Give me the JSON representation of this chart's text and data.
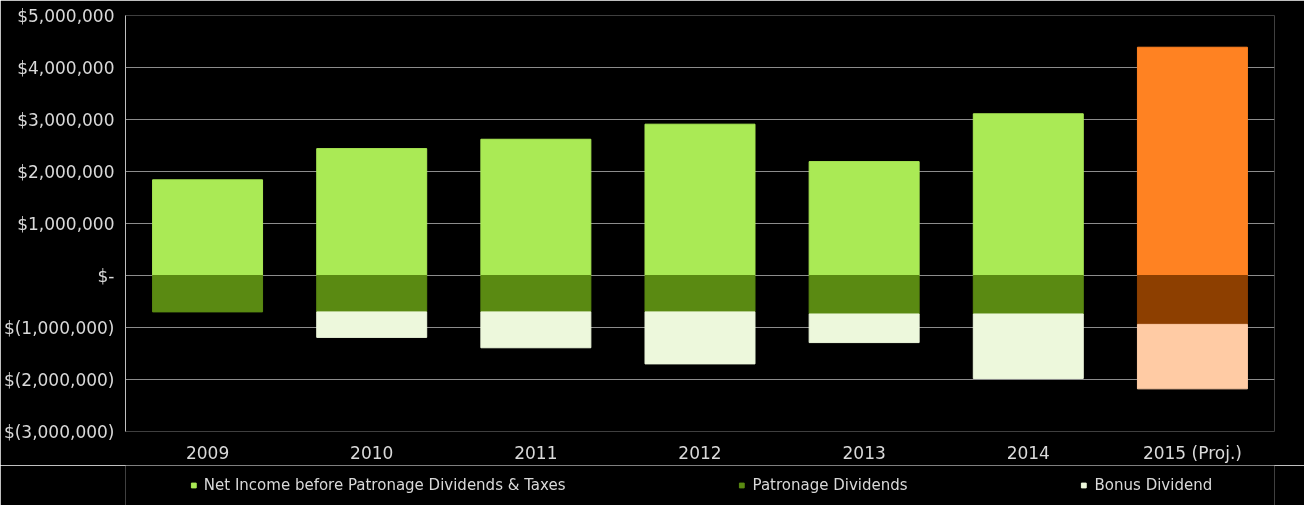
{
  "chart_data": {
    "type": "bar",
    "stacked": true,
    "categories": [
      "2009",
      "2010",
      "2011",
      "2012",
      "2013",
      "2014",
      "2015 (Proj.)"
    ],
    "series": [
      {
        "name": "Net Income before Patronage Dividends & Taxes",
        "color": "#aaea55",
        "colors": [
          "#aaea55",
          "#aaea55",
          "#aaea55",
          "#aaea55",
          "#aaea55",
          "#aaea55",
          "#ff8222"
        ],
        "values": [
          1840000,
          2440000,
          2620000,
          2910000,
          2190000,
          3110000,
          4390000
        ]
      },
      {
        "name": "Patronage Dividends",
        "color": "#5a8a12",
        "colors": [
          "#5a8a12",
          "#5a8a12",
          "#5a8a12",
          "#5a8a12",
          "#5a8a12",
          "#5a8a12",
          "#8d3f00"
        ],
        "values": [
          -700000,
          -700000,
          -700000,
          -700000,
          -740000,
          -740000,
          -940000
        ]
      },
      {
        "name": "Bonus Dividend",
        "color": "#edf8dc",
        "colors": [
          "#edf8dc",
          "#edf8dc",
          "#edf8dc",
          "#edf8dc",
          "#edf8dc",
          "#edf8dc",
          "#ffcba4"
        ],
        "values": [
          null,
          -490000,
          -690000,
          -1000000,
          -550000,
          -1240000,
          -1240000
        ]
      }
    ],
    "ylim": [
      -3000000,
      5000000
    ],
    "yticks": [
      {
        "value": -3000000,
        "label": "$(3,000,000)"
      },
      {
        "value": -2000000,
        "label": "$(2,000,000)"
      },
      {
        "value": -1000000,
        "label": "$(1,000,000)"
      },
      {
        "value": 0,
        "label": "$-"
      },
      {
        "value": 1000000,
        "label": "$1,000,000"
      },
      {
        "value": 2000000,
        "label": "$2,000,000"
      },
      {
        "value": 3000000,
        "label": "$3,000,000"
      },
      {
        "value": 4000000,
        "label": "$4,000,000"
      },
      {
        "value": 5000000,
        "label": "$5,000,000"
      }
    ],
    "grid": "y",
    "legend": "bottom"
  }
}
